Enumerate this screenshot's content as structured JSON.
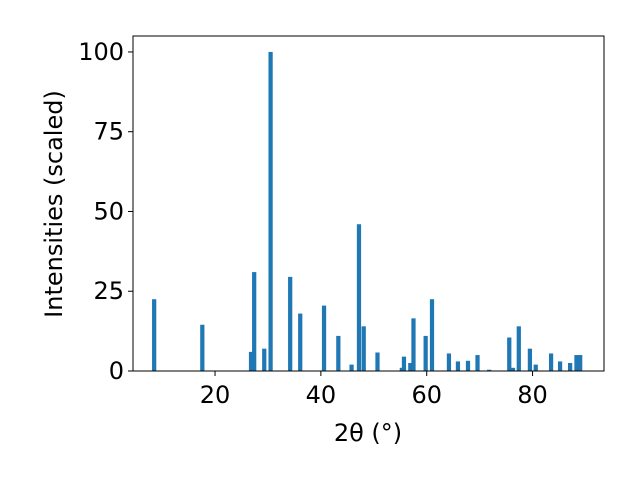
{
  "chart_data": {
    "type": "bar",
    "xlabel": "2θ (°)",
    "ylabel": "Intensities (scaled)",
    "xlim": [
      4.5,
      93.5
    ],
    "ylim": [
      0,
      105
    ],
    "xticks": [
      20,
      40,
      60,
      80
    ],
    "yticks": [
      0,
      25,
      50,
      75,
      100
    ],
    "bar_color": "#1f77b4",
    "grid": false,
    "bar_width": 0.8,
    "points": [
      {
        "x": 8.5,
        "y": 22.5
      },
      {
        "x": 17.6,
        "y": 14.5
      },
      {
        "x": 26.8,
        "y": 6
      },
      {
        "x": 27.4,
        "y": 31
      },
      {
        "x": 29.3,
        "y": 7
      },
      {
        "x": 30.5,
        "y": 100
      },
      {
        "x": 34.2,
        "y": 29.5
      },
      {
        "x": 36.1,
        "y": 18
      },
      {
        "x": 40.6,
        "y": 20.5
      },
      {
        "x": 43.3,
        "y": 11
      },
      {
        "x": 45.8,
        "y": 2
      },
      {
        "x": 47.2,
        "y": 46
      },
      {
        "x": 48.1,
        "y": 14
      },
      {
        "x": 50.7,
        "y": 5.8
      },
      {
        "x": 55.3,
        "y": 1
      },
      {
        "x": 55.7,
        "y": 4.5
      },
      {
        "x": 56.9,
        "y": 2.5
      },
      {
        "x": 57.5,
        "y": 16.5
      },
      {
        "x": 59.8,
        "y": 11
      },
      {
        "x": 61.0,
        "y": 22.5
      },
      {
        "x": 64.2,
        "y": 5.5
      },
      {
        "x": 65.9,
        "y": 3
      },
      {
        "x": 67.8,
        "y": 3.2
      },
      {
        "x": 69.6,
        "y": 5
      },
      {
        "x": 71.8,
        "y": 0.4
      },
      {
        "x": 75.6,
        "y": 10.5
      },
      {
        "x": 76.3,
        "y": 1
      },
      {
        "x": 77.4,
        "y": 14
      },
      {
        "x": 79.5,
        "y": 7
      },
      {
        "x": 80.6,
        "y": 2
      },
      {
        "x": 83.5,
        "y": 5.5
      },
      {
        "x": 85.2,
        "y": 3
      },
      {
        "x": 87.1,
        "y": 2.5
      },
      {
        "x": 88.3,
        "y": 5
      },
      {
        "x": 89.0,
        "y": 5
      }
    ]
  }
}
